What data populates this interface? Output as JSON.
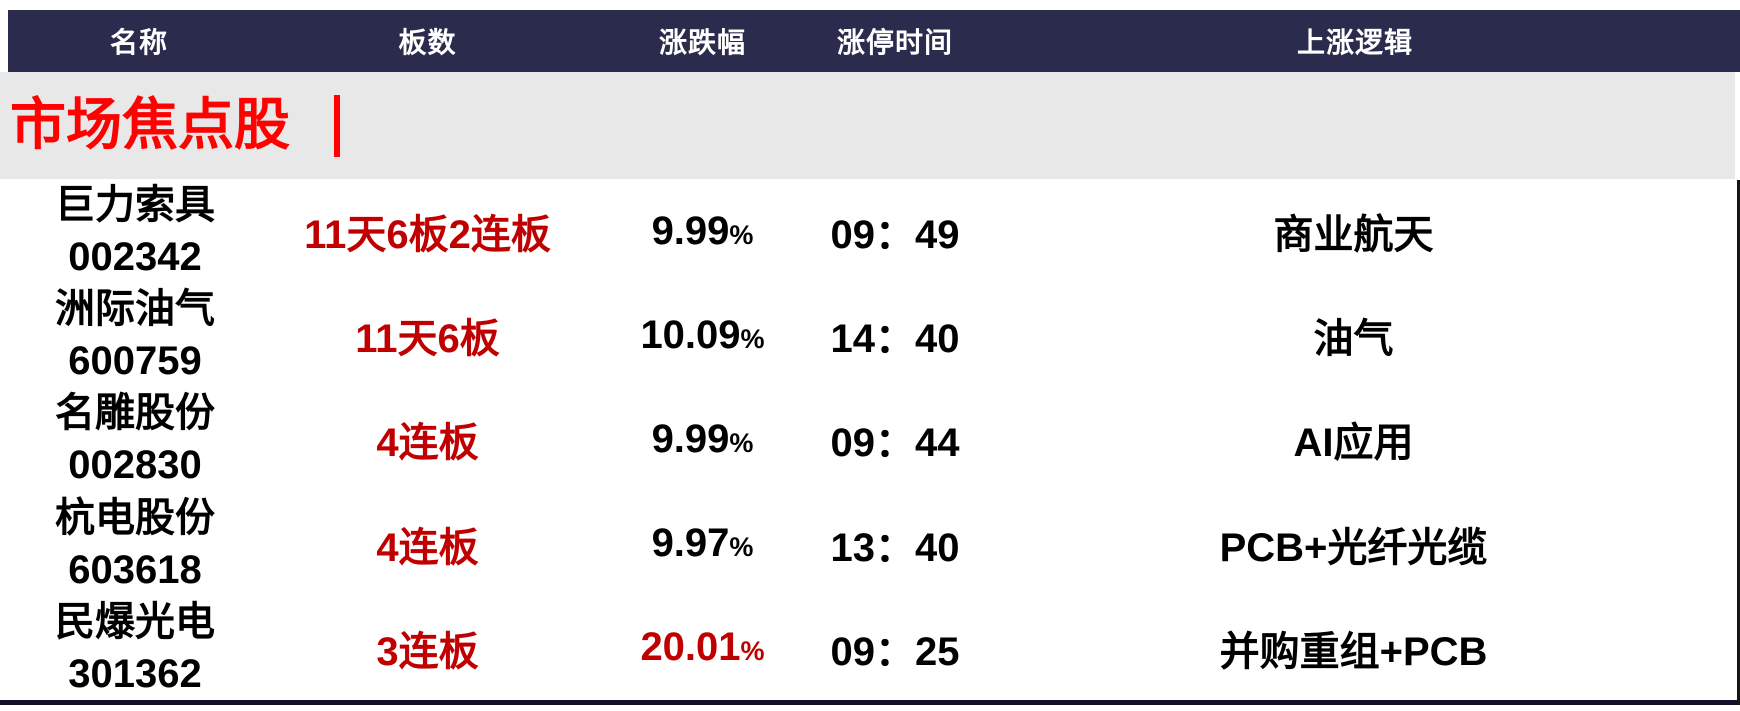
{
  "header": {
    "columns": [
      "名称",
      "板数",
      "涨跌幅",
      "涨停时间",
      "上涨逻辑"
    ]
  },
  "section": {
    "title": "市场焦点股"
  },
  "rows": [
    {
      "name": "巨力索具",
      "code": "002342",
      "boards": "11天6板2连板",
      "change": "9.99",
      "pct": "%",
      "change_class": "cell change",
      "time": "09：49",
      "logic": "商业航天"
    },
    {
      "name": "洲际油气",
      "code": "600759",
      "boards": "11天6板",
      "change": "10.09",
      "pct": "%",
      "change_class": "cell change",
      "time": "14：40",
      "logic": "油气"
    },
    {
      "name": "名雕股份",
      "code": "002830",
      "boards": "4连板",
      "change": "9.99",
      "pct": "%",
      "change_class": "cell change",
      "time": "09：44",
      "logic": "AI应用"
    },
    {
      "name": "杭电股份",
      "code": "603618",
      "boards": "4连板",
      "change": "9.97",
      "pct": "%",
      "change_class": "cell change",
      "time": "13：40",
      "logic": "PCB+光纤光缆"
    },
    {
      "name": "民爆光电",
      "code": "301362",
      "boards": "3连板",
      "change": "20.01",
      "pct": "%",
      "change_class": "cell change red",
      "time": "09：25",
      "logic": "并购重组+PCB"
    }
  ],
  "colors": {
    "header_bg": "#2b2b4e",
    "band_bg": "#e8e8e8",
    "title_red": "#fe0100",
    "value_red": "#c00000",
    "text_black": "#000000"
  }
}
